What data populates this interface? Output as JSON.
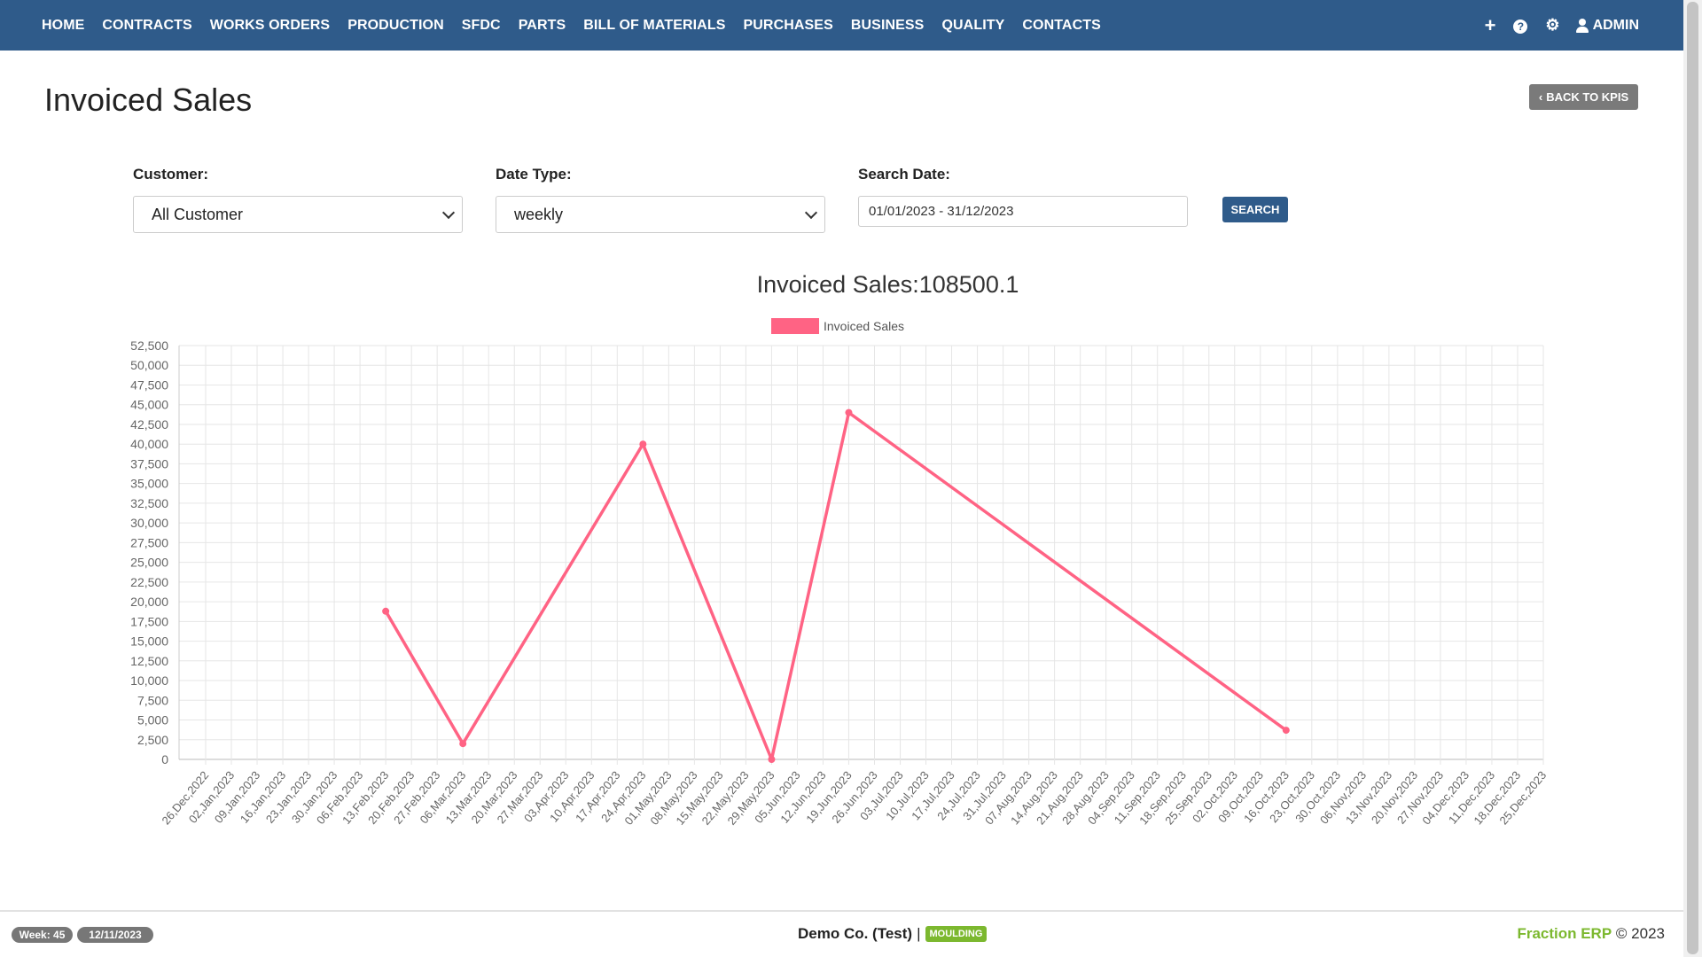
{
  "nav": {
    "items": [
      "HOME",
      "CONTRACTS",
      "WORKS ORDERS",
      "PRODUCTION",
      "SFDC",
      "PARTS",
      "BILL OF MATERIALS",
      "PURCHASES",
      "BUSINESS",
      "QUALITY",
      "CONTACTS"
    ],
    "add_icon": "plus-icon",
    "help_icon": "question-circle-icon",
    "settings_icon": "gear-icon",
    "user_icon": "user-icon",
    "user_label": "ADMIN"
  },
  "page": {
    "title": "Invoiced Sales",
    "back_button": "BACK TO KPIS"
  },
  "filters": {
    "customer_label": "Customer:",
    "customer_value": "All Customer",
    "date_type_label": "Date Type:",
    "date_type_value": "weekly",
    "search_date_label": "Search Date:",
    "search_date_value": "01/01/2023 - 31/12/2023",
    "search_button": "SEARCH"
  },
  "chart_data": {
    "type": "line",
    "title": "Invoiced Sales:108500.1",
    "legend_position": "top-center",
    "series": [
      {
        "name": "Invoiced Sales",
        "color": "#ff6384",
        "values": [
          null,
          null,
          null,
          null,
          null,
          null,
          null,
          18800,
          null,
          null,
          2000,
          null,
          null,
          null,
          null,
          null,
          null,
          40000,
          null,
          null,
          null,
          null,
          0,
          null,
          null,
          44000,
          null,
          null,
          null,
          null,
          null,
          null,
          null,
          null,
          null,
          null,
          null,
          null,
          null,
          null,
          null,
          null,
          3700,
          null,
          null,
          null,
          null,
          null,
          null,
          null,
          null,
          null,
          null
        ]
      }
    ],
    "categories": [
      "26,Dec,2022",
      "02,Jan,2023",
      "09,Jan,2023",
      "16,Jan,2023",
      "23,Jan,2023",
      "30,Jan,2023",
      "06,Feb,2023",
      "13,Feb,2023",
      "20,Feb,2023",
      "27,Feb,2023",
      "06,Mar,2023",
      "13,Mar,2023",
      "20,Mar,2023",
      "27,Mar,2023",
      "03,Apr,2023",
      "10,Apr,2023",
      "17,Apr,2023",
      "24,Apr,2023",
      "01,May,2023",
      "08,May,2023",
      "15,May,2023",
      "22,May,2023",
      "29,May,2023",
      "05,Jun,2023",
      "12,Jun,2023",
      "19,Jun,2023",
      "26,Jun,2023",
      "03,Jul,2023",
      "10,Jul,2023",
      "17,Jul,2023",
      "24,Jul,2023",
      "31,Jul,2023",
      "07,Aug,2023",
      "14,Aug,2023",
      "21,Aug,2023",
      "28,Aug,2023",
      "04,Sep,2023",
      "11,Sep,2023",
      "18,Sep,2023",
      "25,Sep,2023",
      "02,Oct,2023",
      "09,Oct,2023",
      "16,Oct,2023",
      "23,Oct,2023",
      "30,Oct,2023",
      "06,Nov,2023",
      "13,Nov,2023",
      "20,Nov,2023",
      "27,Nov,2023",
      "04,Dec,2023",
      "11,Dec,2023",
      "18,Dec,2023",
      "25,Dec,2023"
    ],
    "ylim": [
      0,
      52500
    ],
    "ytick_step": 2500,
    "grid": true
  },
  "footer": {
    "week_badge": "Week: 45",
    "date_badge": "12/11/2023",
    "company": "Demo Co. (Test)",
    "separator": "|",
    "module_badge": "MOULDING",
    "brand": "Fraction ERP",
    "copyright": "© 2023"
  }
}
